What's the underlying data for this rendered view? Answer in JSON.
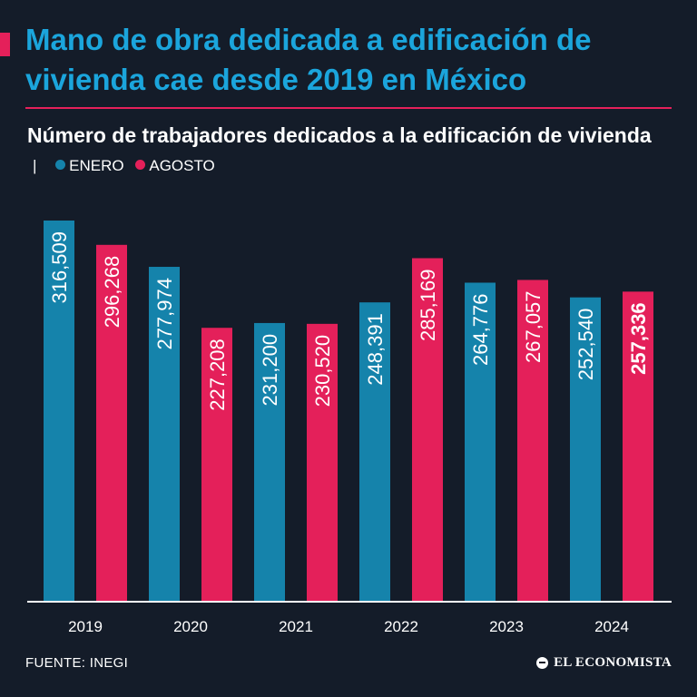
{
  "title": "Mano de obra dedicada a edificación de vivienda cae desde 2019 en México",
  "subtitle": "Número de trabajadores dedicados a la edificación de vivienda",
  "legend_separator": "|",
  "legend": [
    {
      "label": "ENERO",
      "color": "#1583ab"
    },
    {
      "label": "AGOSTO",
      "color": "#e4205a"
    }
  ],
  "source": "FUENTE: INEGI",
  "brand": "EL ECONOMISTA",
  "chart_data": {
    "type": "bar",
    "categories": [
      "2019",
      "2020",
      "2021",
      "2022",
      "2023",
      "2024"
    ],
    "series": [
      {
        "name": "ENERO",
        "color": "#1583ab",
        "values": [
          316509,
          277974,
          231200,
          248391,
          264776,
          252540
        ],
        "labels": [
          "316,509",
          "277,974",
          "231,200",
          "248,391",
          "264,776",
          "252,540"
        ]
      },
      {
        "name": "AGOSTO",
        "color": "#e4205a",
        "values": [
          296268,
          227208,
          230520,
          285169,
          267057,
          257336
        ],
        "labels": [
          "296,268",
          "227,208",
          "230,520",
          "285,169",
          "267,057",
          "257,336"
        ]
      }
    ],
    "ylim": [
      0,
      316509
    ],
    "grid": false,
    "highlight": {
      "series": 1,
      "index": 5
    }
  }
}
